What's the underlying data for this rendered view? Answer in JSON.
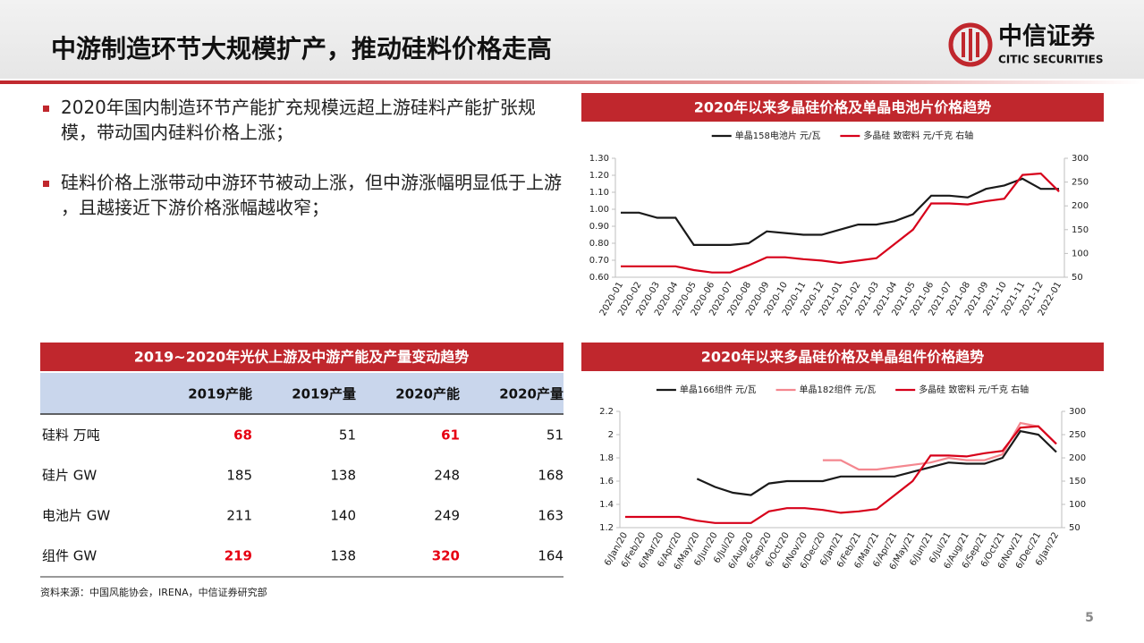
{
  "header": {
    "title": "中游制造环节大规模扩产，推动硅料价格走高",
    "logo_cn": "中信证券",
    "logo_en": "CITIC SECURITIES"
  },
  "bullets": [
    "2020年国内制造环节产能扩充规模远超上游硅料产能扩张规模，带动国内硅料价格上涨；",
    "硅料价格上涨带动中游环节被动上涨，但中游涨幅明显低于上游 ，且越接近下游价格涨幅越收窄；"
  ],
  "table": {
    "title": "2019~2020年光伏上游及中游产能及产量变动趋势",
    "columns": [
      "2019产能",
      "2019产量",
      "2020产能",
      "2020产量"
    ],
    "emphasis_color": "#e60012",
    "rows": [
      {
        "label": "硅料 万吨",
        "cells": [
          68,
          51,
          61,
          51
        ],
        "emphasized": [
          true,
          false,
          true,
          false
        ]
      },
      {
        "label": "硅片 GW",
        "cells": [
          185,
          138,
          248,
          168
        ],
        "emphasized": [
          false,
          false,
          false,
          false
        ]
      },
      {
        "label": "电池片 GW",
        "cells": [
          211,
          140,
          249,
          163
        ],
        "emphasized": [
          false,
          false,
          false,
          false
        ]
      },
      {
        "label": "组件 GW",
        "cells": [
          219,
          138,
          320,
          164
        ],
        "emphasized": [
          true,
          false,
          true,
          false
        ]
      }
    ]
  },
  "source": "资料来源：中国风能协会，IRENA，中信证券研究部",
  "page_number": "5",
  "chart_data": [
    {
      "type": "line",
      "title": "2020年以来多晶硅价格及单晶电池片价格趋势",
      "categories": [
        "2020-01",
        "2020-02",
        "2020-03",
        "2020-04",
        "2020-05",
        "2020-06",
        "2020-07",
        "2020-08",
        "2020-09",
        "2020-10",
        "2020-11",
        "2020-12",
        "2021-01",
        "2021-02",
        "2021-03",
        "2021-04",
        "2021-05",
        "2021-06",
        "2021-07",
        "2021-08",
        "2021-09",
        "2021-10",
        "2021-11",
        "2021-12",
        "2022-01"
      ],
      "series": [
        {
          "name": "单晶158电池片  元/瓦",
          "color": "#1a1a1a",
          "values": [
            0.98,
            0.98,
            0.95,
            0.95,
            0.79,
            0.79,
            0.79,
            0.8,
            0.87,
            0.86,
            0.85,
            0.85,
            0.88,
            0.91,
            0.91,
            0.93,
            0.97,
            1.08,
            1.08,
            1.07,
            1.12,
            1.14,
            1.18,
            1.12,
            1.12
          ]
        },
        {
          "name": "多晶硅  致密料  元/千克  右轴",
          "color": "#d7001a",
          "axis": "y2",
          "values": [
            73,
            73,
            73,
            73,
            65,
            60,
            60,
            75,
            92,
            92,
            88,
            85,
            80,
            85,
            90,
            120,
            150,
            205,
            205,
            203,
            210,
            215,
            265,
            268,
            230
          ]
        }
      ],
      "ylim": [
        0.6,
        1.3
      ],
      "yticks": [
        {
          "value": 0.6,
          "label": "0.60"
        },
        {
          "value": 0.7,
          "label": "0.70"
        },
        {
          "value": 0.8,
          "label": "0.80"
        },
        {
          "value": 0.9,
          "label": "0.90"
        },
        {
          "value": 1.0,
          "label": "1.00"
        },
        {
          "value": 1.1,
          "label": "1.10"
        },
        {
          "value": 1.2,
          "label": "1.20"
        },
        {
          "value": 1.3,
          "label": "1.30"
        }
      ],
      "y2lim": [
        50,
        300
      ],
      "y2ticks": [
        50,
        100,
        150,
        200,
        250,
        300
      ]
    },
    {
      "type": "line",
      "title": "2020年以来多晶硅价格及单晶组件价格趋势",
      "categories": [
        "6/Jan/20",
        "6/Feb/20",
        "6/Mar/20",
        "6/Apr/20",
        "6/May/20",
        "6/Jun/20",
        "6/Jul/20",
        "6/Aug/20",
        "6/Sep/20",
        "6/Oct/20",
        "6/Nov/20",
        "6/Dec/20",
        "6/Jan/21",
        "6/Feb/21",
        "6/Mar/21",
        "6/Apr/21",
        "6/May/21",
        "6/Jun/21",
        "6/Jul/21",
        "6/Aug/21",
        "6/Sep/21",
        "6/Oct/21",
        "6/Nov/21",
        "6/Dec/21",
        "6/Jan/22"
      ],
      "series": [
        {
          "name": "单晶166组件  元/瓦",
          "color": "#1a1a1a",
          "values": [
            null,
            null,
            null,
            null,
            1.62,
            1.55,
            1.5,
            1.48,
            1.58,
            1.6,
            1.6,
            1.6,
            1.64,
            1.64,
            1.64,
            1.64,
            1.68,
            1.72,
            1.76,
            1.75,
            1.75,
            1.8,
            2.03,
            2.0,
            1.85
          ]
        },
        {
          "name": "单晶182组件  元/瓦",
          "color": "#f4878f",
          "values": [
            null,
            null,
            null,
            null,
            null,
            null,
            null,
            null,
            null,
            null,
            null,
            1.78,
            1.78,
            1.7,
            1.7,
            1.72,
            1.74,
            1.76,
            1.8,
            1.78,
            1.78,
            1.83,
            2.1,
            2.07,
            1.92
          ]
        },
        {
          "name": "多晶硅 致密料 元/千克 右轴",
          "color": "#d7001a",
          "axis": "y2",
          "values": [
            73,
            73,
            73,
            73,
            65,
            60,
            60,
            60,
            85,
            92,
            92,
            88,
            82,
            85,
            90,
            120,
            150,
            205,
            205,
            203,
            210,
            215,
            265,
            268,
            230
          ]
        }
      ],
      "ylim": [
        1.2,
        2.2
      ],
      "yticks": [
        1.2,
        1.4,
        1.6,
        1.8,
        2,
        2.2
      ],
      "y2lim": [
        50,
        300
      ],
      "y2ticks": [
        50,
        100,
        150,
        200,
        250,
        300
      ]
    }
  ]
}
